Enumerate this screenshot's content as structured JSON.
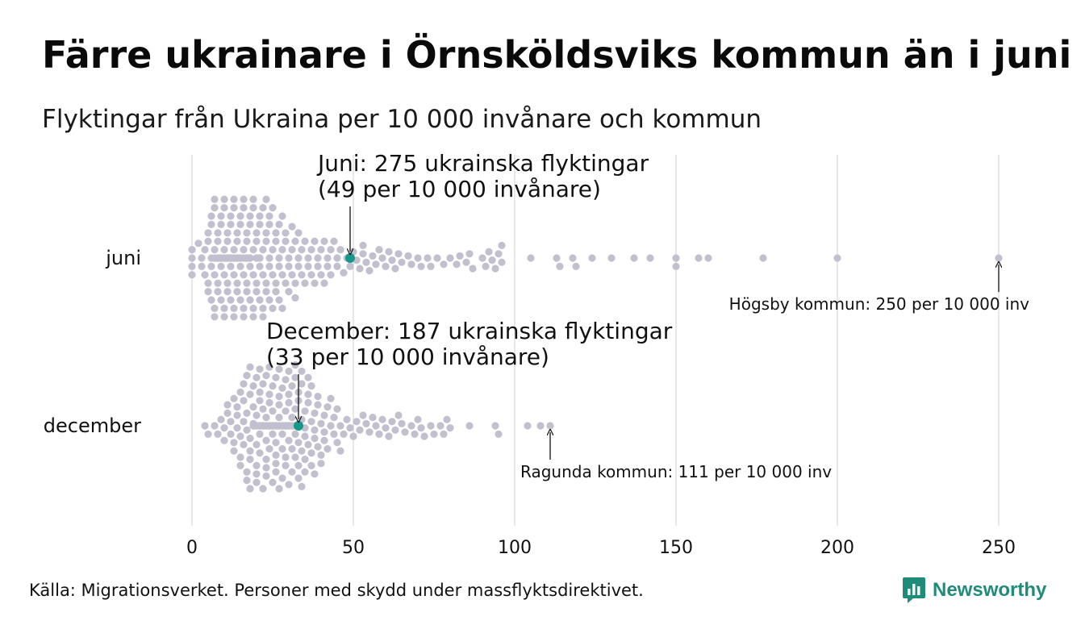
{
  "title": "Färre ukrainare i Örnsköldsviks kommun än i juni",
  "subtitle": "Flyktingar från Ukraina per 10 000 invånare och kommun",
  "source": "Källa: Migrationsverket. Personer med skydd under massflyktsdirektivet.",
  "brand": {
    "name": "Newsworthy",
    "icon": "newsworthy-logo-icon",
    "color": "#1f8c7a"
  },
  "colors": {
    "dot": "#c2c0cf",
    "highlight": "#17968a",
    "grid": "#d0d0d0",
    "text": "#111111"
  },
  "chart_data": {
    "type": "beeswarm",
    "x_ticks": [
      0,
      50,
      100,
      150,
      200,
      250
    ],
    "xlim": [
      0,
      250
    ],
    "grid": true,
    "rows": [
      {
        "label": "juni",
        "highlight": {
          "value": 49,
          "annotation": [
            "Juni: 275 ukrainska flyktingar",
            "(49 per 10 000 invånare)"
          ]
        },
        "max": {
          "value": 250,
          "annotation": "Högsby kommun: 250 per 10 000 inv"
        },
        "values": [
          0,
          0,
          0,
          0,
          2,
          3,
          3,
          4,
          4,
          5,
          5,
          5,
          5,
          6,
          6,
          6,
          6,
          6,
          7,
          7,
          7,
          7,
          7,
          7,
          7,
          8,
          8,
          8,
          8,
          8,
          8,
          8,
          8,
          8,
          9,
          9,
          9,
          9,
          9,
          9,
          9,
          9,
          9,
          10,
          10,
          10,
          10,
          10,
          10,
          10,
          10,
          10,
          11,
          11,
          11,
          11,
          11,
          11,
          11,
          11,
          12,
          12,
          12,
          12,
          12,
          12,
          12,
          12,
          12,
          13,
          13,
          13,
          13,
          13,
          13,
          13,
          13,
          14,
          14,
          14,
          14,
          14,
          14,
          14,
          14,
          15,
          15,
          15,
          15,
          15,
          15,
          15,
          15,
          16,
          16,
          16,
          16,
          16,
          16,
          16,
          17,
          17,
          17,
          17,
          17,
          17,
          17,
          18,
          18,
          18,
          18,
          18,
          18,
          18,
          19,
          19,
          19,
          19,
          19,
          19,
          20,
          20,
          20,
          20,
          20,
          20,
          21,
          21,
          21,
          21,
          21,
          21,
          22,
          22,
          22,
          22,
          22,
          23,
          23,
          23,
          23,
          23,
          24,
          24,
          24,
          24,
          24,
          25,
          25,
          25,
          25,
          26,
          26,
          26,
          26,
          27,
          27,
          27,
          27,
          28,
          28,
          28,
          28,
          29,
          29,
          29,
          30,
          30,
          30,
          31,
          31,
          31,
          32,
          32,
          32,
          33,
          33,
          33,
          34,
          34,
          35,
          35,
          36,
          36,
          37,
          37,
          38,
          38,
          39,
          39,
          40,
          40,
          41,
          41,
          42,
          42,
          43,
          43,
          44,
          45,
          45,
          46,
          47,
          48,
          49,
          50,
          51,
          52,
          53,
          53,
          54,
          55,
          56,
          57,
          58,
          59,
          60,
          61,
          62,
          63,
          64,
          65,
          67,
          68,
          70,
          71,
          73,
          74,
          76,
          78,
          80,
          82,
          83,
          85,
          86,
          87,
          90,
          91,
          92,
          93,
          94,
          95,
          96,
          96,
          105,
          113,
          114,
          118,
          119,
          124,
          130,
          137,
          142,
          150,
          150,
          157,
          160,
          177,
          200,
          250
        ]
      },
      {
        "label": "december",
        "highlight": {
          "value": 33,
          "annotation": [
            "December: 187 ukrainska flyktingar",
            "(33 per 10 000 invånare)"
          ]
        },
        "max": {
          "value": 111,
          "annotation": "Ragunda kommun: 111 per 10 000 inv"
        },
        "values": [
          4,
          5,
          7,
          8,
          9,
          10,
          10,
          11,
          11,
          12,
          12,
          13,
          13,
          13,
          14,
          14,
          14,
          15,
          15,
          15,
          15,
          16,
          16,
          16,
          16,
          17,
          17,
          17,
          17,
          17,
          18,
          18,
          18,
          18,
          18,
          18,
          19,
          19,
          19,
          19,
          19,
          19,
          20,
          20,
          20,
          20,
          20,
          20,
          20,
          21,
          21,
          21,
          21,
          21,
          21,
          21,
          22,
          22,
          22,
          22,
          22,
          22,
          22,
          22,
          23,
          23,
          23,
          23,
          23,
          23,
          23,
          23,
          24,
          24,
          24,
          24,
          24,
          24,
          24,
          24,
          24,
          25,
          25,
          25,
          25,
          25,
          25,
          25,
          25,
          25,
          26,
          26,
          26,
          26,
          26,
          26,
          26,
          26,
          27,
          27,
          27,
          27,
          27,
          27,
          27,
          27,
          27,
          28,
          28,
          28,
          28,
          28,
          28,
          28,
          28,
          28,
          29,
          29,
          29,
          29,
          29,
          29,
          29,
          29,
          29,
          30,
          30,
          30,
          30,
          30,
          30,
          30,
          30,
          31,
          31,
          31,
          31,
          31,
          31,
          31,
          32,
          32,
          32,
          32,
          32,
          32,
          33,
          33,
          33,
          33,
          33,
          34,
          34,
          34,
          34,
          34,
          35,
          35,
          35,
          35,
          35,
          36,
          36,
          36,
          36,
          37,
          37,
          37,
          37,
          38,
          38,
          38,
          38,
          39,
          39,
          39,
          40,
          40,
          40,
          41,
          41,
          41,
          42,
          42,
          43,
          43,
          44,
          44,
          45,
          45,
          46,
          46,
          47,
          48,
          49,
          50,
          51,
          52,
          53,
          54,
          55,
          56,
          57,
          58,
          59,
          60,
          61,
          62,
          63,
          64,
          65,
          66,
          68,
          69,
          70,
          71,
          72,
          74,
          75,
          77,
          78,
          79,
          80,
          86,
          94,
          95,
          104,
          108,
          111
        ]
      }
    ]
  }
}
